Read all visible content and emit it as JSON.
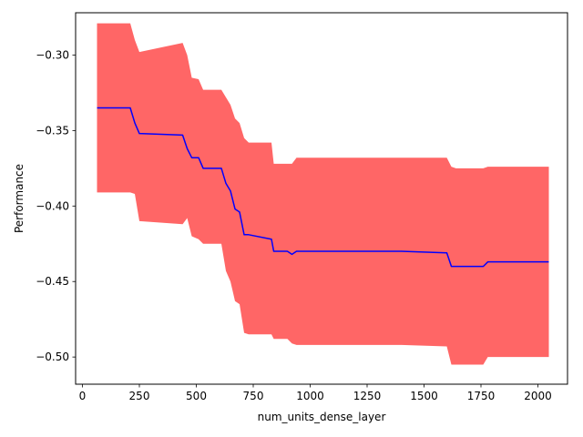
{
  "chart_data": {
    "type": "line",
    "xlabel": "num_units_dense_layer",
    "ylabel": "Performance",
    "xlim": [
      -30,
      2130
    ],
    "ylim": [
      -0.518,
      -0.272
    ],
    "xticks": [
      0,
      250,
      500,
      750,
      1000,
      1250,
      1500,
      1750,
      2000
    ],
    "xtick_labels": [
      "0",
      "250",
      "500",
      "750",
      "1000",
      "1250",
      "1500",
      "1750",
      "2000"
    ],
    "yticks": [
      -0.3,
      -0.35,
      -0.4,
      -0.45,
      -0.5
    ],
    "ytick_labels": [
      "−0.30",
      "−0.35",
      "−0.40",
      "−0.45",
      "−0.50"
    ],
    "grid": false,
    "colors": {
      "line": "#0000ff",
      "band": "#ff6666"
    },
    "series": [
      {
        "x": [
          64,
          210,
          230,
          250,
          440,
          460,
          480,
          510,
          530,
          610,
          630,
          650,
          670,
          690,
          710,
          730,
          830,
          840,
          900,
          920,
          940,
          1100,
          1400,
          1600,
          1620,
          1640,
          1760,
          1780,
          2048
        ],
        "y": [
          -0.335,
          -0.335,
          -0.345,
          -0.352,
          -0.353,
          -0.362,
          -0.368,
          -0.368,
          -0.375,
          -0.375,
          -0.385,
          -0.39,
          -0.402,
          -0.404,
          -0.419,
          -0.419,
          -0.422,
          -0.43,
          -0.43,
          -0.432,
          -0.43,
          -0.43,
          -0.43,
          -0.431,
          -0.44,
          -0.44,
          -0.44,
          -0.437,
          -0.437
        ],
        "upper": [
          -0.279,
          -0.279,
          -0.29,
          -0.298,
          -0.292,
          -0.3,
          -0.315,
          -0.316,
          -0.323,
          -0.323,
          -0.328,
          -0.333,
          -0.342,
          -0.345,
          -0.355,
          -0.358,
          -0.358,
          -0.372,
          -0.372,
          -0.372,
          -0.368,
          -0.368,
          -0.368,
          -0.368,
          -0.374,
          -0.375,
          -0.375,
          -0.374,
          -0.374
        ],
        "lower": [
          -0.391,
          -0.391,
          -0.392,
          -0.41,
          -0.412,
          -0.408,
          -0.42,
          -0.422,
          -0.425,
          -0.425,
          -0.443,
          -0.45,
          -0.463,
          -0.465,
          -0.484,
          -0.485,
          -0.485,
          -0.488,
          -0.488,
          -0.491,
          -0.492,
          -0.492,
          -0.492,
          -0.493,
          -0.505,
          -0.505,
          -0.505,
          -0.5,
          -0.5
        ]
      }
    ]
  }
}
